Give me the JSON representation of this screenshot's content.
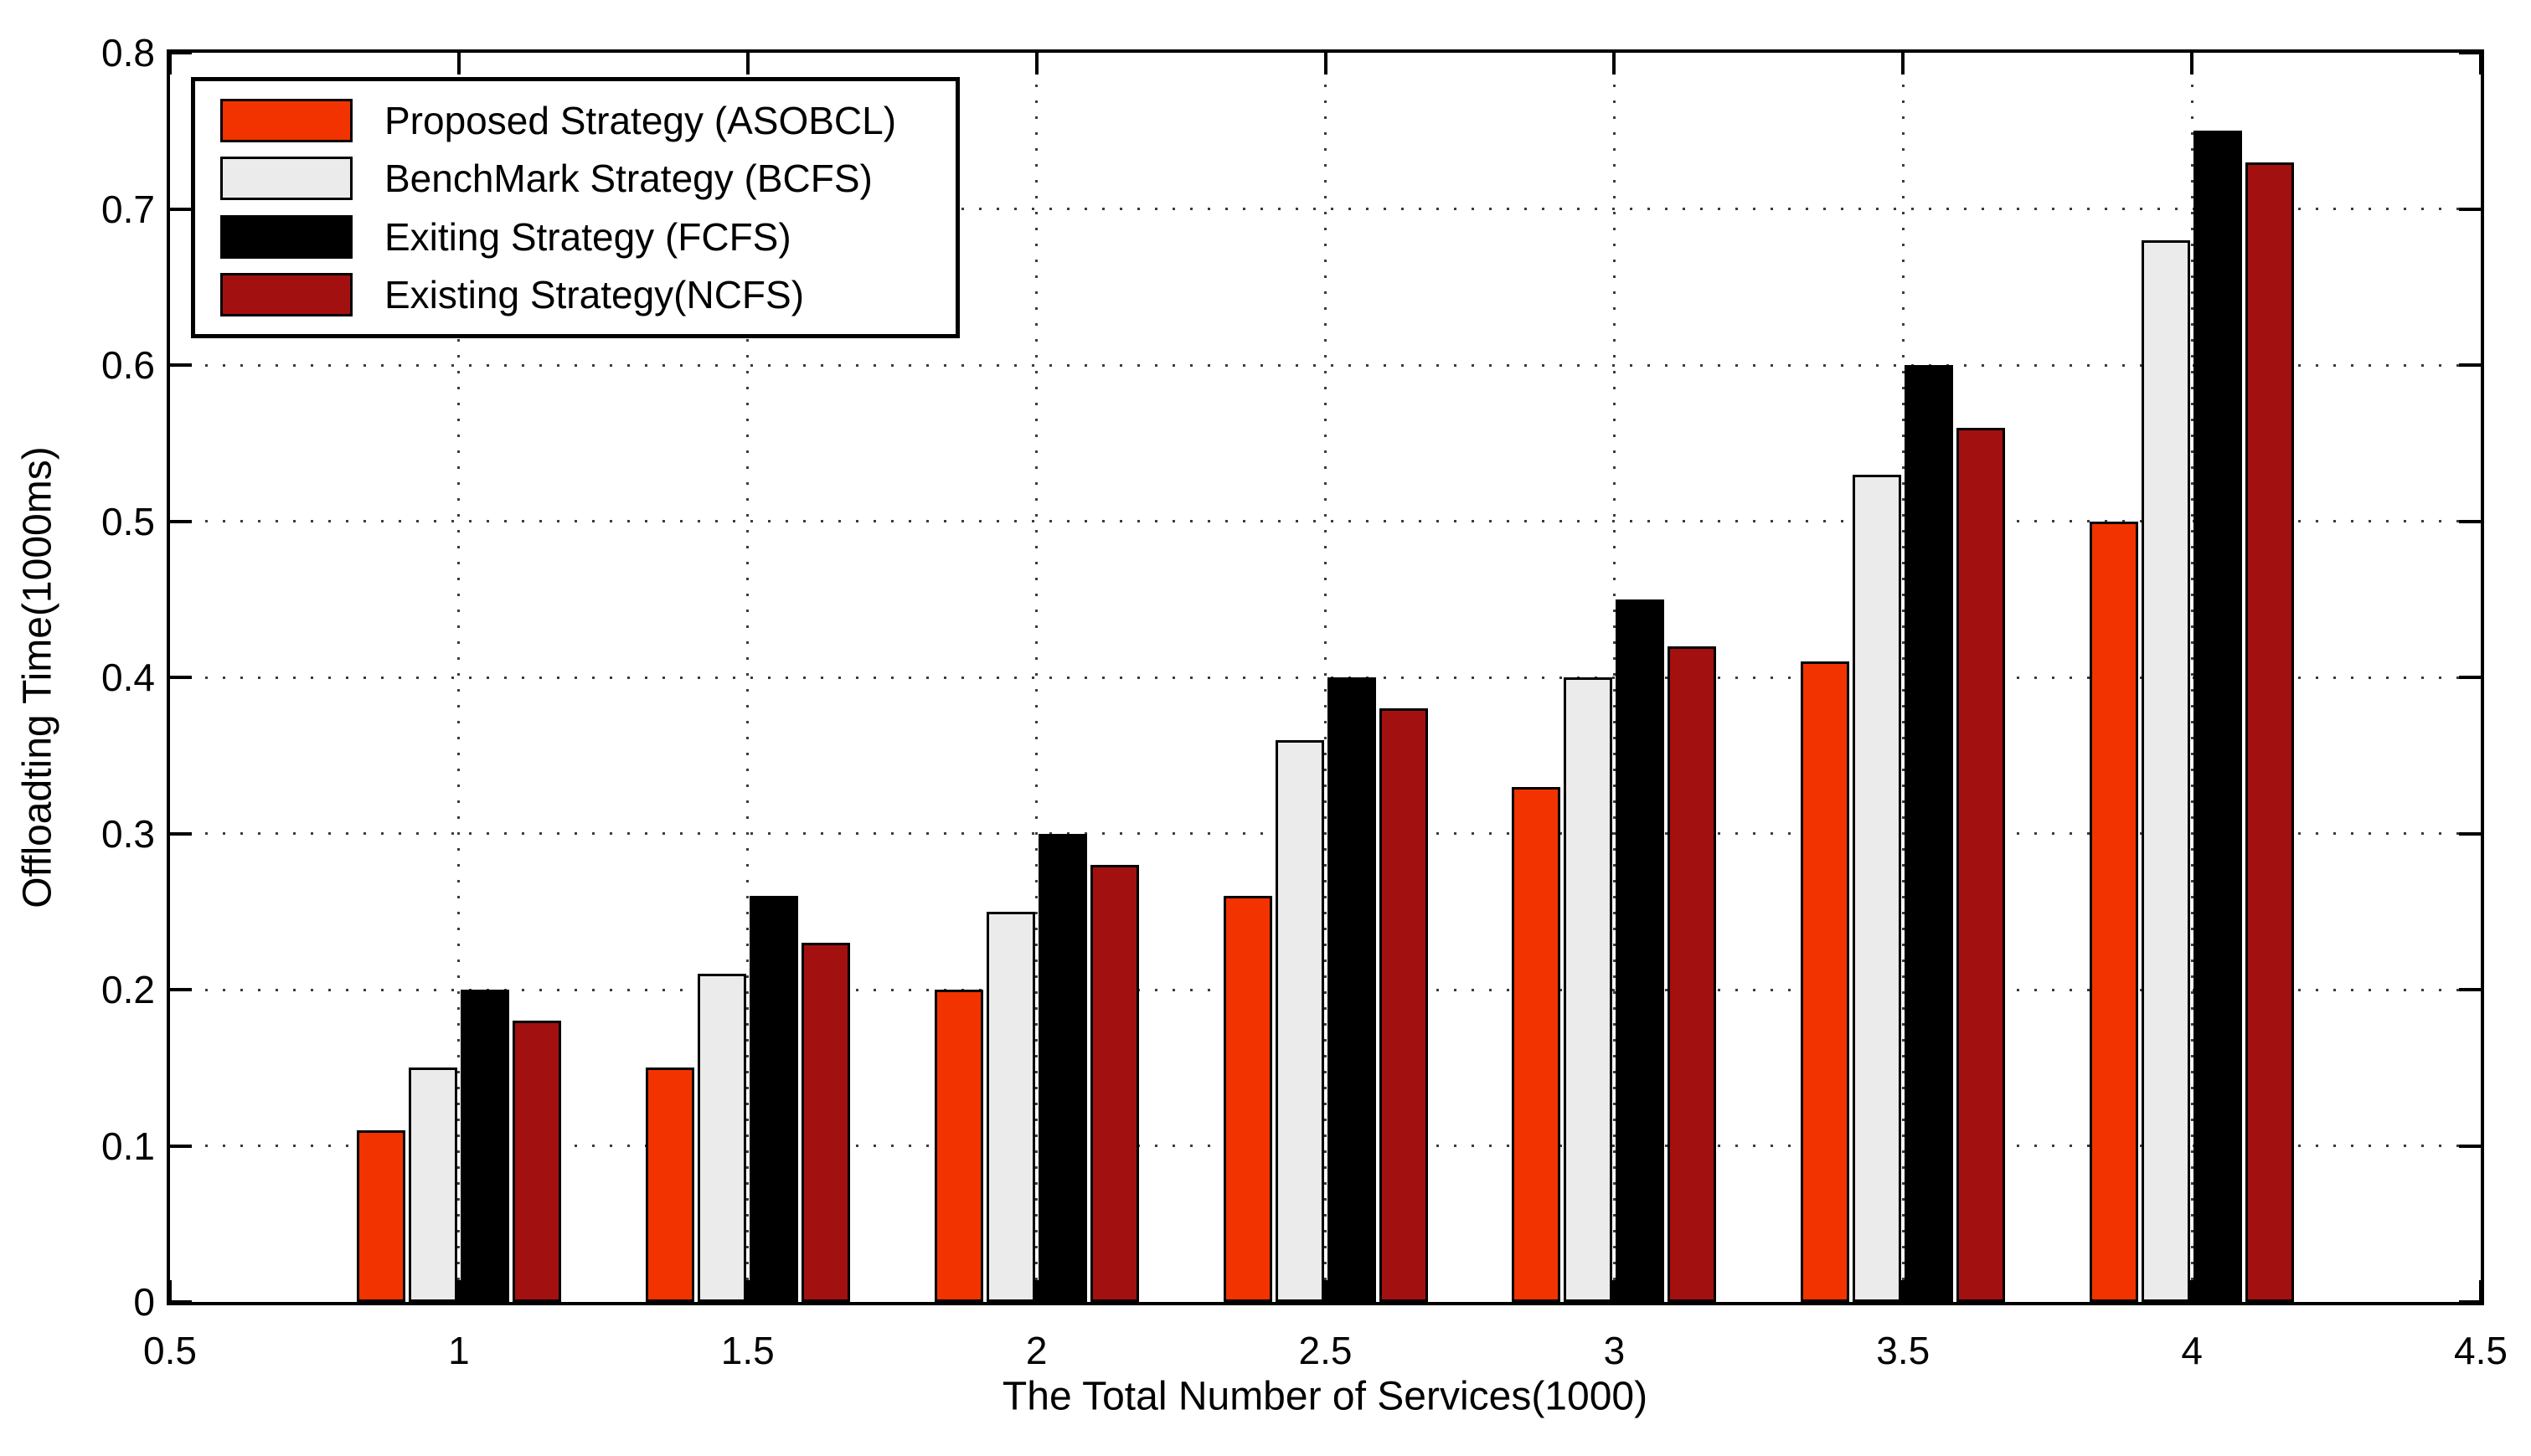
{
  "figure": {
    "background": "#ffffff",
    "axis_color": "#000000",
    "grid_color": "#3c3c3c"
  },
  "chart_data": {
    "type": "bar",
    "title": "",
    "xlabel": "The Total Number of Services(1000)",
    "ylabel": "Offloadting Time(1000ms)",
    "xlim": [
      0.5,
      4.5
    ],
    "ylim": [
      0,
      0.8
    ],
    "x_ticks": [
      "0.5",
      "1",
      "1.5",
      "2",
      "2.5",
      "3",
      "3.5",
      "4",
      "4.5"
    ],
    "y_ticks": [
      "0",
      "0.1",
      "0.2",
      "0.3",
      "0.4",
      "0.5",
      "0.6",
      "0.7",
      "0.8"
    ],
    "grid": "dotted",
    "legend_position": "top-left",
    "bar_edge_color": "#000000",
    "categories": [
      1,
      1.5,
      2,
      2.5,
      3,
      3.5,
      4
    ],
    "series": [
      {
        "name": "Proposed Strategy (ASOBCL)",
        "short": "asobcl",
        "color": "#f23300",
        "values": [
          0.11,
          0.15,
          0.2,
          0.26,
          0.33,
          0.41,
          0.5
        ]
      },
      {
        "name": "BenchMark Strategy (BCFS)",
        "short": "bcfs",
        "color": "#ebebeb",
        "values": [
          0.15,
          0.21,
          0.25,
          0.36,
          0.4,
          0.53,
          0.68
        ]
      },
      {
        "name": "Exiting Strategy (FCFS)",
        "short": "fcfs",
        "color": "#000000",
        "values": [
          0.2,
          0.26,
          0.3,
          0.4,
          0.45,
          0.6,
          0.75
        ]
      },
      {
        "name": "Existing Strategy(NCFS)",
        "short": "ncfs",
        "color": "#a31010",
        "values": [
          0.18,
          0.23,
          0.28,
          0.38,
          0.42,
          0.56,
          0.73
        ]
      }
    ]
  }
}
